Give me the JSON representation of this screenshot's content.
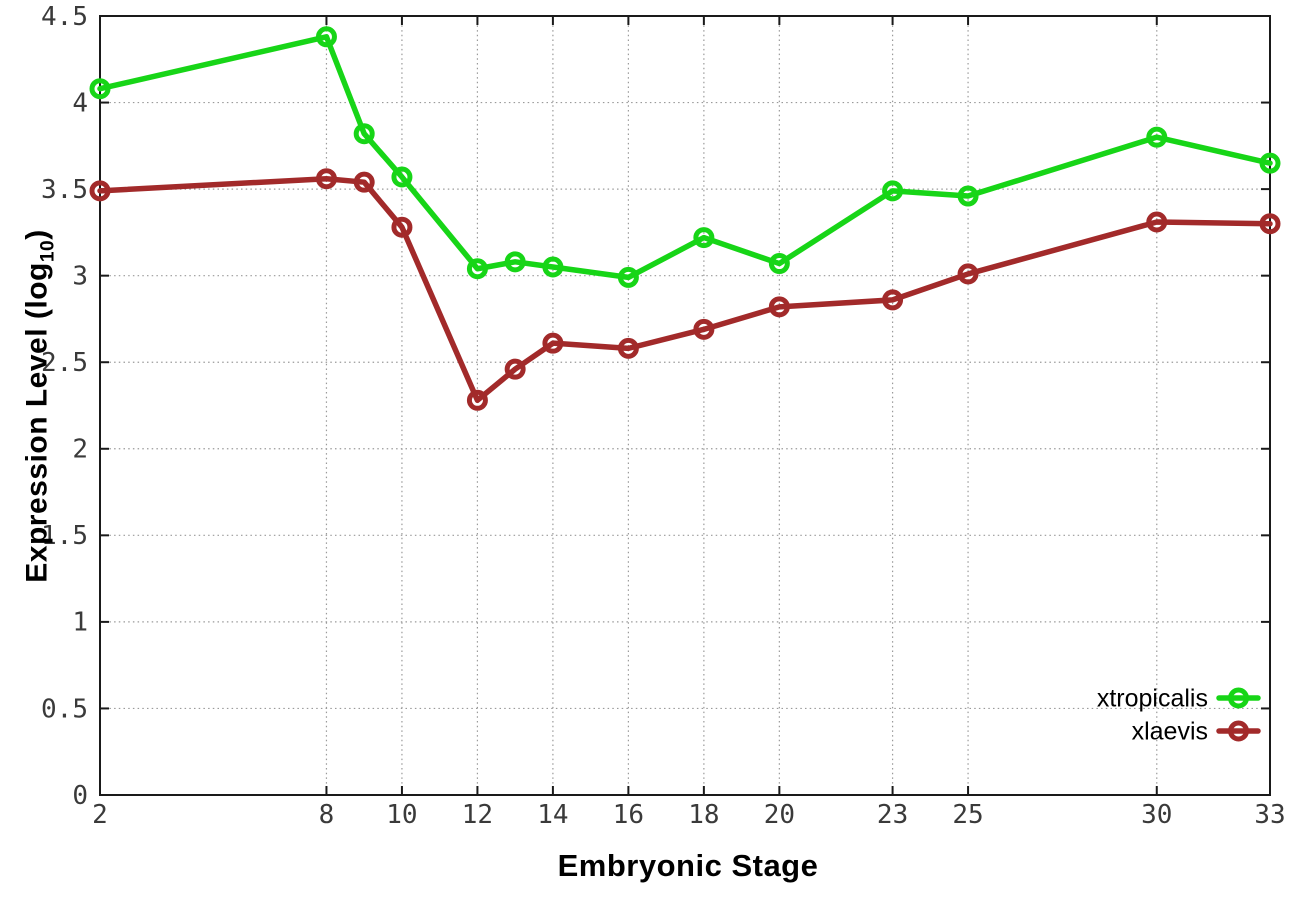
{
  "figure": {
    "background": "#ffffff",
    "border_color": "#1a1a1a",
    "grid_color": "#9a9a9a",
    "tick_label_color": "#3a3a3a"
  },
  "chart_data": {
    "type": "line",
    "title": "",
    "xlabel": "Embryonic Stage",
    "ylabel": "Expression Level (log10)",
    "ylabel_main": "Expression Level (log",
    "ylabel_sub": "10",
    "ylabel_suffix": ")",
    "x": [
      2,
      8,
      9,
      10,
      12,
      13,
      14,
      16,
      18,
      20,
      23,
      25,
      30,
      33
    ],
    "series": [
      {
        "name": "xtropicalis",
        "color": "#17D517",
        "values": [
          4.08,
          4.38,
          3.82,
          3.57,
          3.04,
          3.08,
          3.05,
          2.99,
          3.22,
          3.07,
          3.49,
          3.46,
          3.8,
          3.65
        ]
      },
      {
        "name": "xlaevis",
        "color": "#A22A2A",
        "values": [
          3.49,
          3.56,
          3.54,
          3.28,
          2.28,
          2.46,
          2.61,
          2.58,
          2.69,
          2.82,
          2.86,
          3.01,
          3.31,
          3.3
        ]
      }
    ],
    "x_ticks": [
      2,
      8,
      10,
      12,
      14,
      16,
      18,
      20,
      23,
      25,
      30,
      33
    ],
    "y_ticks": [
      0,
      0.5,
      1,
      1.5,
      2,
      2.5,
      3,
      3.5,
      4,
      4.5
    ],
    "xlim": [
      2,
      33
    ],
    "ylim": [
      0,
      4.5
    ],
    "grid": true,
    "legend_position": "bottom-right",
    "marker": "open-circle",
    "line_style": "linespoints"
  }
}
